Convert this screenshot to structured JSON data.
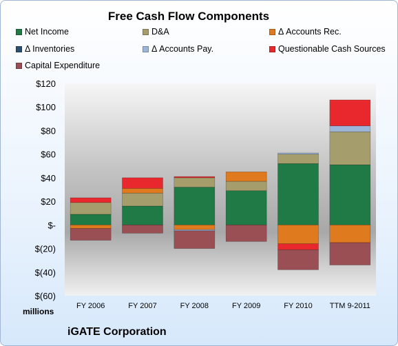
{
  "chart_data": {
    "type": "bar",
    "stacked": true,
    "title": "Free Cash Flow Components",
    "categories": [
      "FY 2006",
      "FY 2007",
      "FY 2008",
      "FY 2009",
      "FY 2010",
      "TTM 9-2011"
    ],
    "ylim": [
      -60,
      120
    ],
    "yticks": [
      -60,
      -40,
      -20,
      0,
      20,
      40,
      60,
      80,
      100,
      120
    ],
    "ytick_labels": [
      "$(60)",
      "$(40)",
      "$(20)",
      "$-",
      "$20",
      "$40",
      "$60",
      "$80",
      "$100",
      "$120"
    ],
    "units_label": "millions",
    "footer": "iGATE Corporation",
    "grid": false,
    "legend_position": "top",
    "series": [
      {
        "name": "Net Income",
        "color": "#1f7a45",
        "values": [
          9,
          16,
          32,
          29,
          52,
          51
        ]
      },
      {
        "name": "D&A",
        "color": "#a59d6b",
        "values": [
          10,
          11,
          8,
          8,
          8,
          28
        ]
      },
      {
        "name": "Δ Accounts Rec.",
        "color": "#e07a1f",
        "values": [
          -3,
          4,
          -4,
          8,
          -16,
          -15
        ]
      },
      {
        "name": "Δ Inventories",
        "color": "#2b4f6f",
        "values": [
          0,
          0,
          0,
          0,
          0,
          0
        ]
      },
      {
        "name": "Δ Accounts Pay.",
        "color": "#9db5d9",
        "values": [
          0,
          0,
          -1,
          0,
          1,
          5
        ]
      },
      {
        "name": "Questionable Cash Sources",
        "color": "#e8282c",
        "values": [
          4,
          9,
          1,
          0,
          -5,
          22
        ]
      },
      {
        "name": "Capital Expenditure",
        "color": "#9a4f54",
        "values": [
          -10,
          -7,
          -15,
          -14,
          -17,
          -19
        ]
      }
    ]
  }
}
